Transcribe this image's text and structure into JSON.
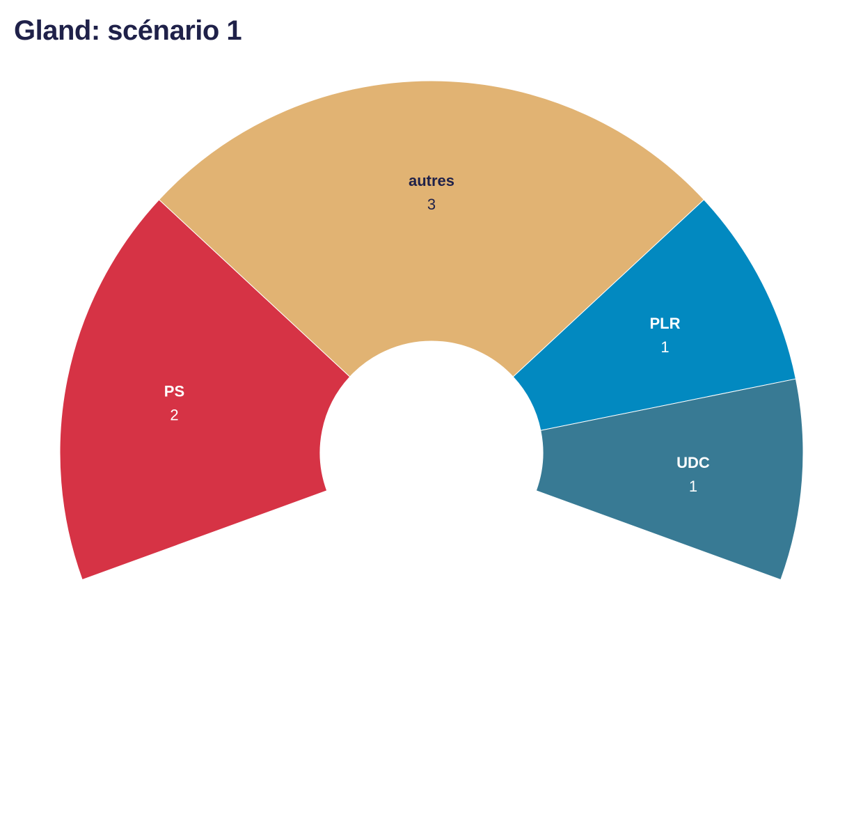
{
  "chart_data": {
    "type": "pie",
    "subtype": "parliament-arc",
    "title": "Gland: scénario 1",
    "total_seats": 7,
    "series": [
      {
        "name": "PS",
        "value": 2,
        "color": "#d63345",
        "label_color": "#ffffff"
      },
      {
        "name": "autres",
        "value": 3,
        "color": "#e1b373",
        "label_color": "#1f2149"
      },
      {
        "name": "PLR",
        "value": 1,
        "color": "#0289c0",
        "label_color": "#ffffff"
      },
      {
        "name": "UDC",
        "value": 1,
        "color": "#387a94",
        "label_color": "#ffffff"
      }
    ]
  }
}
